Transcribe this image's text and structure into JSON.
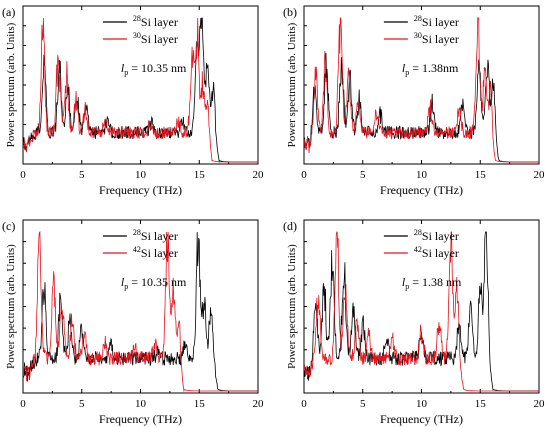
{
  "chart_data": [
    {
      "panel_label": "(a)",
      "type": "line",
      "xlabel": "Frequency (THz)",
      "ylabel": "Power spectrum (arb. Units)",
      "xlim": [
        0,
        20
      ],
      "x_ticks": [
        "0",
        "5",
        "10",
        "15",
        "20"
      ],
      "annotation": {
        "symbol": "l",
        "subscript": "p",
        "text": " = 10.35 nm"
      },
      "legend_position": "top-right",
      "series": [
        {
          "sup": "28",
          "label": "Si layer",
          "color": "#000000",
          "peaks": [
            [
              1.8,
              0.65
            ],
            [
              3.1,
              0.58
            ],
            [
              3.8,
              0.45
            ],
            [
              4.6,
              0.33
            ],
            [
              5.4,
              0.24
            ],
            [
              7.2,
              0.16
            ],
            [
              11.0,
              0.14
            ],
            [
              13.6,
              0.16
            ],
            [
              14.8,
              0.72
            ],
            [
              15.2,
              0.98
            ],
            [
              15.7,
              0.55
            ],
            [
              16.2,
              0.42
            ]
          ],
          "cutoff": 16.7
        },
        {
          "sup": "30",
          "label": "Si layer",
          "color": "#e8141e",
          "peaks": [
            [
              1.7,
              0.88
            ],
            [
              3.0,
              0.66
            ],
            [
              3.7,
              0.5
            ],
            [
              4.5,
              0.3
            ],
            [
              5.3,
              0.22
            ],
            [
              7.0,
              0.15
            ],
            [
              10.8,
              0.13
            ],
            [
              13.2,
              0.14
            ],
            [
              14.4,
              0.6
            ],
            [
              14.8,
              0.8
            ],
            [
              15.3,
              0.42
            ],
            [
              15.8,
              0.3
            ]
          ],
          "cutoff": 16.1
        }
      ]
    },
    {
      "panel_label": "(b)",
      "type": "line",
      "xlabel": "Frequency (THz)",
      "ylabel": "Power spectrum (arb. Units)",
      "xlim": [
        0,
        20
      ],
      "x_ticks": [
        "0",
        "5",
        "10",
        "15",
        "20"
      ],
      "annotation": {
        "symbol": "l",
        "subscript": "p",
        "text": " = 1.38nm"
      },
      "legend_position": "top-right",
      "series": [
        {
          "sup": "28",
          "label": "Si layer",
          "color": "#000000",
          "peaks": [
            [
              0.9,
              0.42
            ],
            [
              1.9,
              0.55
            ],
            [
              3.2,
              0.6
            ],
            [
              3.9,
              0.45
            ],
            [
              4.7,
              0.3
            ],
            [
              6.5,
              0.2
            ],
            [
              10.9,
              0.28
            ],
            [
              13.5,
              0.25
            ],
            [
              14.9,
              0.55
            ],
            [
              15.6,
              0.58
            ],
            [
              16.1,
              0.45
            ]
          ],
          "cutoff": 16.6
        },
        {
          "sup": "30",
          "label": "Si layer",
          "color": "#e8141e",
          "peaks": [
            [
              1.0,
              0.5
            ],
            [
              1.8,
              0.6
            ],
            [
              3.1,
              0.95
            ],
            [
              3.8,
              0.5
            ],
            [
              4.6,
              0.32
            ],
            [
              6.2,
              0.2
            ],
            [
              10.7,
              0.25
            ],
            [
              13.2,
              0.22
            ],
            [
              14.8,
              0.98
            ],
            [
              15.4,
              0.5
            ],
            [
              15.9,
              0.38
            ]
          ],
          "cutoff": 16.3
        }
      ]
    },
    {
      "panel_label": "(c)",
      "type": "line",
      "xlabel": "Frequency (THz)",
      "ylabel": "Power spectrum (arb. Units)",
      "xlim": [
        0,
        20
      ],
      "x_ticks": [
        "0",
        "5",
        "10",
        "15",
        "20"
      ],
      "annotation": {
        "symbol": "l",
        "subscript": "p",
        "text": " = 10.35 nm"
      },
      "legend_position": "top-right",
      "series": [
        {
          "sup": "28",
          "label": "Si layer",
          "color": "#000000",
          "peaks": [
            [
              1.8,
              0.55
            ],
            [
              3.2,
              0.48
            ],
            [
              4.0,
              0.35
            ],
            [
              5.0,
              0.25
            ],
            [
              7.5,
              0.15
            ],
            [
              11.5,
              0.12
            ],
            [
              13.8,
              0.15
            ],
            [
              14.9,
              0.92
            ],
            [
              15.4,
              0.45
            ],
            [
              16.0,
              0.38
            ]
          ],
          "cutoff": 16.6
        },
        {
          "sup": "42",
          "label": "Si layer",
          "color": "#e8141e",
          "peaks": [
            [
              1.4,
              0.88
            ],
            [
              2.6,
              0.6
            ],
            [
              3.3,
              0.48
            ],
            [
              4.2,
              0.32
            ],
            [
              5.2,
              0.22
            ],
            [
              7.0,
              0.16
            ],
            [
              9.5,
              0.14
            ],
            [
              11.2,
              0.15
            ],
            [
              12.3,
              0.95
            ],
            [
              12.8,
              0.55
            ],
            [
              13.3,
              0.3
            ]
          ],
          "cutoff": 13.7
        }
      ]
    },
    {
      "panel_label": "(d)",
      "type": "line",
      "xlabel": "Frequency (THz)",
      "ylabel": "Power spectrum (arb. Units)",
      "xlim": [
        0,
        20
      ],
      "x_ticks": [
        "0",
        "5",
        "10",
        "15",
        "20"
      ],
      "annotation": {
        "symbol": "l",
        "subscript": "p",
        "text": " = 1.38 nm"
      },
      "legend_position": "top-right",
      "series": [
        {
          "sup": "28",
          "label": "Si layer",
          "color": "#000000",
          "peaks": [
            [
              1.0,
              0.45
            ],
            [
              1.7,
              0.6
            ],
            [
              2.4,
              0.75
            ],
            [
              3.4,
              0.7
            ],
            [
              4.2,
              0.4
            ],
            [
              5.0,
              0.3
            ],
            [
              7.0,
              0.2
            ],
            [
              10.0,
              0.22
            ],
            [
              13.2,
              0.3
            ],
            [
              14.2,
              0.45
            ],
            [
              15.0,
              0.62
            ],
            [
              15.5,
              0.92
            ]
          ],
          "cutoff": 16.1
        },
        {
          "sup": "42",
          "label": "Si layer",
          "color": "#e8141e",
          "peaks": [
            [
              1.2,
              0.5
            ],
            [
              2.8,
              0.98
            ],
            [
              3.5,
              0.55
            ],
            [
              4.5,
              0.35
            ],
            [
              5.5,
              0.2
            ],
            [
              7.5,
              0.18
            ],
            [
              10.0,
              0.25
            ],
            [
              11.5,
              0.3
            ],
            [
              12.5,
              0.95
            ],
            [
              13.0,
              0.5
            ]
          ],
          "cutoff": 13.6
        }
      ]
    }
  ]
}
